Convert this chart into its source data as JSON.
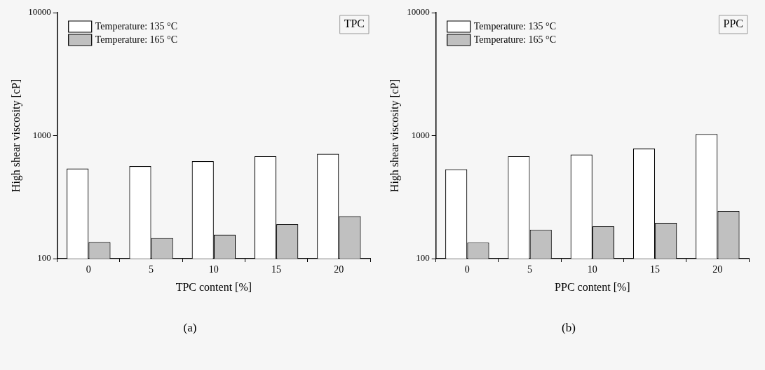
{
  "chart_data": [
    {
      "type": "bar",
      "xlabel": "TPC content [%]",
      "ylabel": "High shear viscosity [cP]",
      "categories": [
        "0",
        "5",
        "10",
        "15",
        "20"
      ],
      "series": [
        {
          "name": "Temperature: 135 °C",
          "color": "#ffffff",
          "values": [
            540,
            565,
            620,
            680,
            710
          ]
        },
        {
          "name": "Temperature: 165 °C",
          "color": "#c0c0c0",
          "values": [
            136,
            147,
            156,
            190,
            221
          ]
        }
      ],
      "log": "y",
      "ylim": [
        100,
        10000
      ],
      "yticks": [
        100,
        1000,
        10000
      ],
      "grid": false,
      "legend": "top left",
      "annotations": [
        "TPC",
        "(a)"
      ]
    },
    {
      "type": "bar",
      "xlabel": "PPC content [%]",
      "ylabel": "High shear viscosity [cP]",
      "categories": [
        "0",
        "5",
        "10",
        "15",
        "20"
      ],
      "series": [
        {
          "name": "Temperature: 135 °C",
          "color": "#ffffff",
          "values": [
            533,
            680,
            702,
            784,
            1030
          ]
        },
        {
          "name": "Temperature: 165 °C",
          "color": "#c0c0c0",
          "values": [
            135,
            172,
            183,
            195,
            244
          ]
        }
      ],
      "log": "y",
      "ylim": [
        100,
        10000
      ],
      "yticks": [
        100,
        1000,
        10000
      ],
      "grid": false,
      "legend": "top left",
      "annotations": [
        "PPC",
        "(b)"
      ]
    }
  ]
}
